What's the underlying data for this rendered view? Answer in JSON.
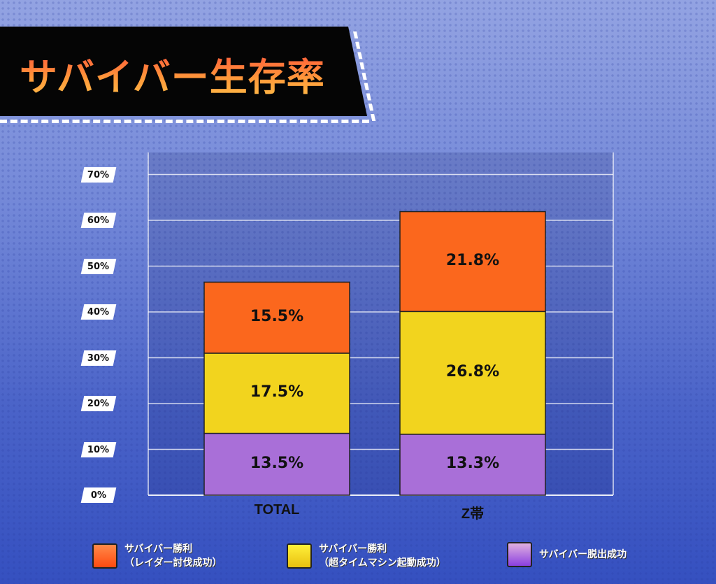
{
  "title": "サバイバー生存率",
  "chart_data": {
    "type": "bar",
    "stacked": true,
    "title": "サバイバー生存率",
    "categories": [
      "TOTAL",
      "Z帯"
    ],
    "yticks": [
      "0%",
      "10%",
      "20%",
      "30%",
      "40%",
      "50%",
      "60%",
      "70%"
    ],
    "ylim": [
      0,
      70
    ],
    "grid": true,
    "legend_position": "bottom",
    "series": [
      {
        "name": "サバイバー脱出成功",
        "name_line2": "",
        "color": "#a96fd8",
        "values": [
          13.5,
          13.3
        ],
        "labels": [
          "13.5%",
          "13.3%"
        ]
      },
      {
        "name": "サバイバー勝利",
        "name_line2": "（超タイムマシン起動成功）",
        "color": "#f2d41e",
        "values": [
          17.5,
          26.8
        ],
        "labels": [
          "17.5%",
          "26.8%"
        ]
      },
      {
        "name": "サバイバー勝利",
        "name_line2": "（レイダー討伐成功）",
        "color": "#fb671d",
        "values": [
          15.5,
          21.8
        ],
        "labels": [
          "15.5%",
          "21.8%"
        ]
      }
    ]
  }
}
